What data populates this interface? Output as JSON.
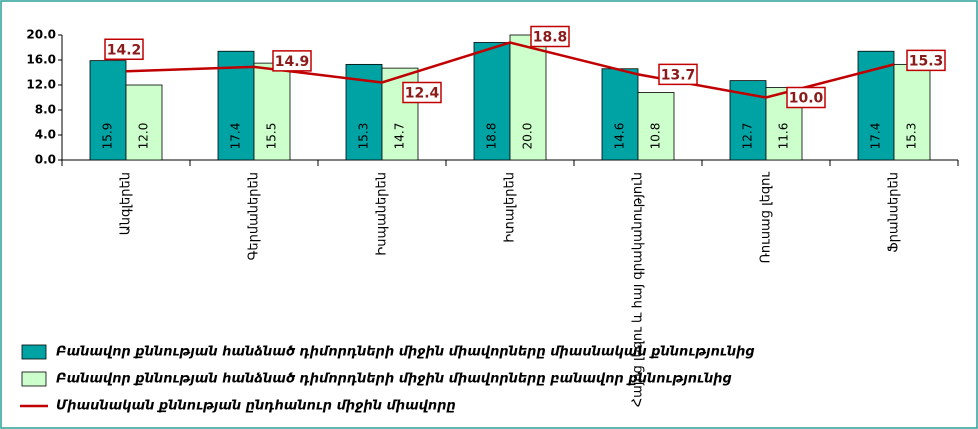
{
  "chart_data": {
    "type": "bar_line",
    "categories": [
      "Անգլերեն",
      "Գերմաներեն",
      "Իսպաներեն",
      "Իտալերեն",
      "Հայոց լեզու և հայ գրականություն",
      "Ռուսաց լեզու",
      "Ֆրանսերեն"
    ],
    "series": [
      {
        "name": "Բանավոր քննության հանձնած դիմորդների միջին միավորները միասնական քննությունից",
        "type": "bar",
        "color": "#00a3a3",
        "values": [
          15.9,
          17.4,
          15.3,
          18.8,
          14.6,
          12.7,
          17.4
        ],
        "value_labels": [
          "15.9",
          "17.4",
          "15.3",
          "18.8",
          "14.6",
          "12.7",
          "17.4"
        ]
      },
      {
        "name": "Բանավոր քննության հանձնած դիմորդների միջին միավորները բանավոր քննությունից",
        "type": "bar",
        "color": "#ccffcc",
        "values": [
          12,
          15.5,
          14.7,
          20,
          10.8,
          11.6,
          15.3
        ],
        "value_labels": [
          "12.0",
          "15.5",
          "14.7",
          "20.0",
          "10.8",
          "11.6",
          "15.3"
        ]
      },
      {
        "name": "Միասնական քննության ընդհանուր միջին միավորը",
        "type": "line",
        "color": "#c00000",
        "values": [
          14.2,
          14.9,
          12.4,
          18.8,
          13.7,
          10,
          15.3
        ],
        "value_labels": [
          "14.2",
          "14.9",
          "12.4",
          "18.8",
          "13.7",
          "10.0",
          "15.3"
        ]
      }
    ],
    "ylim": [
      0,
      20
    ],
    "yticks": [
      {
        "value": 0,
        "label": "0.0"
      },
      {
        "value": 4,
        "label": "4.0"
      },
      {
        "value": 8,
        "label": "8.0"
      },
      {
        "value": 12,
        "label": "12.0"
      },
      {
        "value": 16,
        "label": "16.0"
      },
      {
        "value": 20,
        "label": "20.0"
      }
    ]
  }
}
